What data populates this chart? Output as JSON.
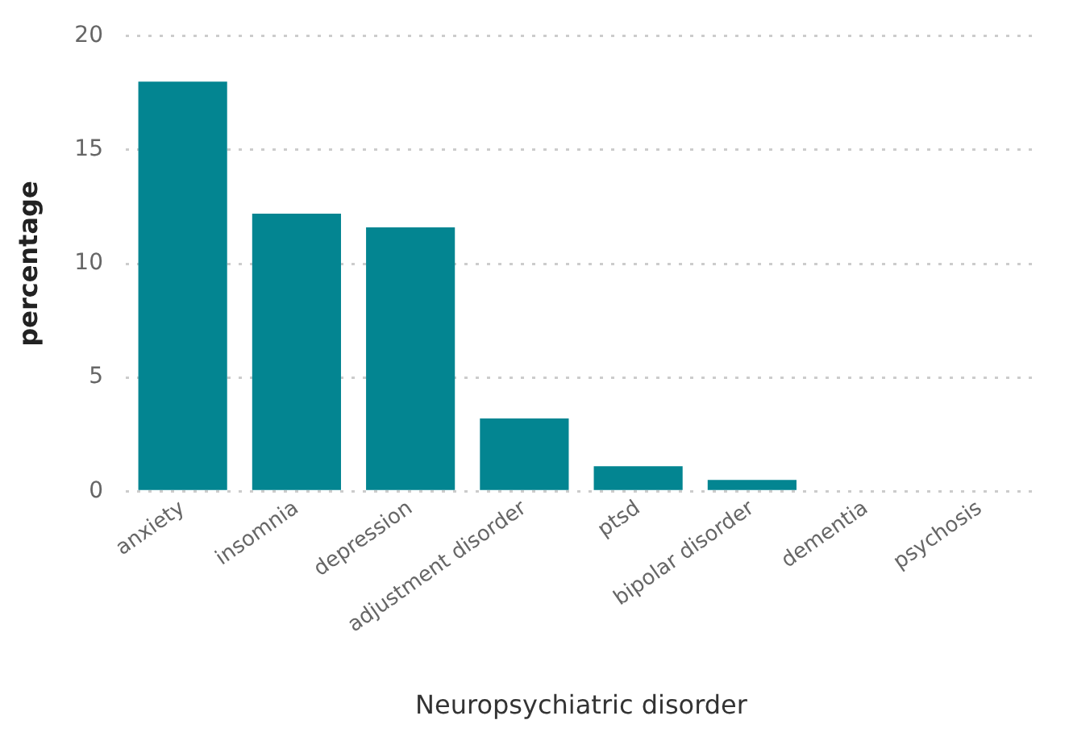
{
  "chart_data": {
    "type": "bar",
    "xlabel": "Neuropsychiatric disorder",
    "ylabel": "percentage",
    "categories": [
      "anxiety",
      "insomnia",
      "depression",
      "adjustment disorder",
      "ptsd",
      "bipolar disorder",
      "dementia",
      "psychosis"
    ],
    "values": [
      18,
      12.2,
      11.6,
      3.2,
      1.1,
      0.5,
      0,
      0
    ],
    "color": "#038591",
    "ylim": [
      0,
      20
    ],
    "yticks": [
      0,
      5,
      10,
      15,
      20
    ],
    "grid": "y",
    "legend": false
  }
}
